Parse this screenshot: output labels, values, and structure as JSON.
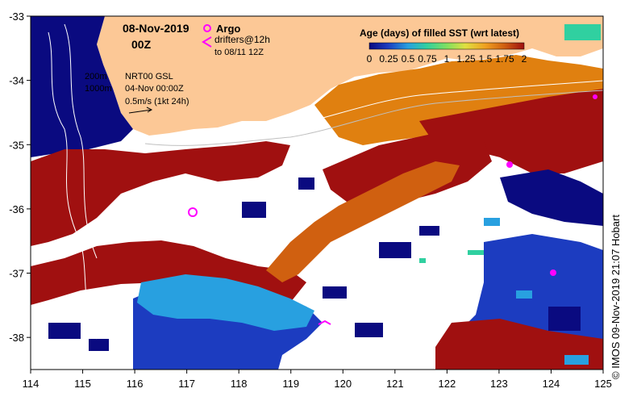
{
  "map": {
    "date": "08-Nov-2019",
    "hour": "00Z",
    "lon_ticks": [
      "114",
      "115",
      "116",
      "117",
      "118",
      "119",
      "120",
      "121",
      "122",
      "123",
      "124",
      "125"
    ],
    "lat_ticks": [
      "-33",
      "-34",
      "-35",
      "-36",
      "-37",
      "-38"
    ],
    "lon_range": [
      114,
      125
    ],
    "lat_range": [
      -38.5,
      -33
    ]
  },
  "legend": {
    "argo_label": "Argo",
    "drifters_label": "drifters@12h",
    "drifters_sub": "to 08/11 12Z",
    "argo_color": "#ff00ff",
    "drifter_color": "#ff00ff"
  },
  "colorbar": {
    "title": "Age (days) of filled SST (wrt latest)",
    "ticks": [
      "0",
      "0.25",
      "0.5",
      "0.75",
      "1",
      "1.25",
      "1.5",
      "1.75",
      "2"
    ],
    "colors": [
      "#0a0a80",
      "#1c3cc0",
      "#28a0e0",
      "#30d0a0",
      "#80e060",
      "#e0e040",
      "#f0a020",
      "#d06010",
      "#a01010"
    ]
  },
  "annotations": {
    "contour_200": "200m",
    "contour_1000": "1000m",
    "product": "NRT00 GSL",
    "product_date": "04-Nov 00:00Z",
    "arrow_scale": "0.5m/s (1kt 24h)"
  },
  "credit": "© IMOS 09-Nov-2019 21:07 Hobart",
  "colors": {
    "land": "#fcc896",
    "deep_water": "#0a0a80",
    "mid_blue": "#1c3cc0",
    "light_blue": "#28a0e0",
    "orange": "#e08010",
    "dark_red": "#a01010",
    "gap": "#ffffff"
  }
}
